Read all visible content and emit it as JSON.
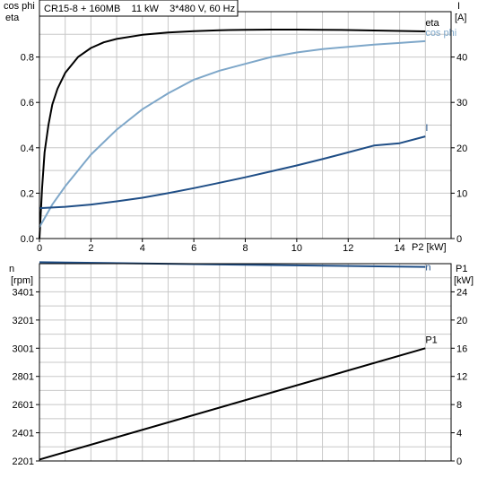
{
  "header": {
    "info_text": "CR15-8 + 160MB    11 kW    3*480 V, 60 Hz"
  },
  "colors": {
    "eta": "#000000",
    "cos_phi": "#7ea7c9",
    "I": "#1f4e86",
    "n": "#1f4e86",
    "P1": "#000000",
    "grid": "#c8c8c8",
    "frame": "#000000"
  },
  "chart_data": [
    {
      "type": "line",
      "panel": "top",
      "xlabel": "P2 [kW]",
      "ylabel_left": [
        "cos phi",
        "eta"
      ],
      "ylabel_right": [
        "I",
        "[A]"
      ],
      "xlim": [
        0,
        16
      ],
      "ylim_left": [
        0,
        1
      ],
      "ylim_right": [
        0,
        50
      ],
      "xticks": [
        0,
        2,
        4,
        6,
        8,
        10,
        12,
        14
      ],
      "yticks_left": [
        0.0,
        0.2,
        0.4,
        0.6,
        0.8
      ],
      "yticks_left_labels": [
        "0.0",
        "0.2",
        "0.4",
        "0.6",
        "0.8"
      ],
      "yticks_right": [
        0,
        10,
        20,
        30,
        40
      ],
      "grid": true,
      "series": [
        {
          "name": "eta",
          "axis": "left",
          "x": [
            0.0,
            0.1,
            0.2,
            0.35,
            0.5,
            0.7,
            1.0,
            1.5,
            2.0,
            2.5,
            3.0,
            4.0,
            5.0,
            6.0,
            7.0,
            8.0,
            9.0,
            10.0,
            11.0,
            12.0,
            13.0,
            14.0,
            15.0
          ],
          "y": [
            0.0,
            0.22,
            0.38,
            0.5,
            0.59,
            0.66,
            0.73,
            0.8,
            0.84,
            0.865,
            0.88,
            0.898,
            0.908,
            0.914,
            0.918,
            0.92,
            0.921,
            0.921,
            0.92,
            0.919,
            0.917,
            0.915,
            0.913
          ]
        },
        {
          "name": "cos phi",
          "axis": "left",
          "x": [
            0.0,
            0.5,
            1.0,
            2.0,
            3.0,
            4.0,
            5.0,
            6.0,
            7.0,
            8.0,
            9.0,
            10.0,
            11.0,
            12.0,
            13.0,
            14.0,
            15.0
          ],
          "y": [
            0.05,
            0.15,
            0.23,
            0.37,
            0.48,
            0.57,
            0.64,
            0.7,
            0.74,
            0.77,
            0.8,
            0.82,
            0.835,
            0.845,
            0.855,
            0.862,
            0.87
          ]
        },
        {
          "name": "I",
          "axis": "right",
          "x": [
            0.0,
            1.0,
            2.0,
            3.0,
            4.0,
            5.0,
            6.0,
            7.0,
            8.0,
            9.0,
            10.0,
            11.0,
            12.0,
            13.0,
            14.0,
            15.0
          ],
          "y": [
            6.7,
            7.0,
            7.5,
            8.2,
            9.0,
            10.0,
            11.1,
            12.3,
            13.5,
            14.8,
            16.1,
            17.5,
            19.0,
            20.5,
            21.0,
            22.5
          ]
        }
      ]
    },
    {
      "type": "line",
      "panel": "bottom",
      "ylabel_left": [
        "n",
        "[rpm]"
      ],
      "ylabel_right": [
        "P1",
        "[kW]"
      ],
      "xlim": [
        0,
        16
      ],
      "ylim_left": [
        2201,
        3601
      ],
      "ylim_right": [
        0,
        28
      ],
      "yticks_left": [
        2201,
        2401,
        2601,
        2801,
        3001,
        3201,
        3401
      ],
      "yticks_right": [
        0,
        4,
        8,
        12,
        16,
        20,
        24
      ],
      "grid": true,
      "series": [
        {
          "name": "n",
          "axis": "left",
          "x": [
            0,
            15
          ],
          "y": [
            3611,
            3578
          ]
        },
        {
          "name": "P1",
          "axis": "right",
          "x": [
            0,
            15
          ],
          "y": [
            0.2,
            16.0
          ]
        }
      ]
    }
  ]
}
